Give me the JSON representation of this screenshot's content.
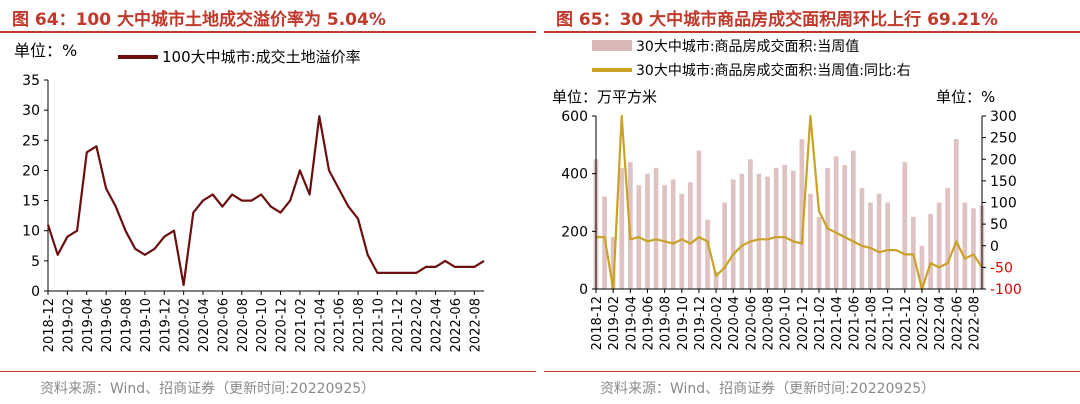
{
  "charts": [
    {
      "panel_title": "图 64：100 大中城市土地成交溢价率为 5.04%",
      "unit_label": "单位：%",
      "source": "资料来源：Wind、招商证券（更新时间:20220925）",
      "colors": {
        "line": "#6b0f0f",
        "title": "#c0392b"
      }
    },
    {
      "panel_title": "图 65：30 大中城市商品房成交面积周环比上行 69.21%",
      "unit_left": "单位：万平方米",
      "unit_right": "单位：%",
      "source": "资料来源：Wind、招商证券（更新时间:20220925）",
      "colors": {
        "bar": "#d9b8b8",
        "line": "#c9a227",
        "neg_tick": "#e00000",
        "title": "#c0392b"
      }
    }
  ],
  "chart_data": [
    {
      "type": "line",
      "title": "100 大中城市土地成交溢价率为 5.04%",
      "ylabel": "%",
      "ylim": [
        0,
        35
      ],
      "yticks": [
        0,
        5,
        10,
        15,
        20,
        25,
        30,
        35
      ],
      "xlim": [
        "2018-12",
        "2022-09"
      ],
      "xticks": [
        "2018-12",
        "2019-02",
        "2019-04",
        "2019-06",
        "2019-08",
        "2019-10",
        "2019-12",
        "2020-02",
        "2020-04",
        "2020-06",
        "2020-08",
        "2020-10",
        "2020-12",
        "2021-02",
        "2021-04",
        "2021-06",
        "2021-08",
        "2021-10",
        "2021-12",
        "2022-02",
        "2022-04",
        "2022-06",
        "2022-08"
      ],
      "grid": false,
      "legend_position": "top",
      "series": [
        {
          "name": "100大中城市:成交土地溢价率",
          "x": [
            "2018-12",
            "2019-01",
            "2019-02",
            "2019-03",
            "2019-04",
            "2019-05",
            "2019-06",
            "2019-07",
            "2019-08",
            "2019-09",
            "2019-10",
            "2019-11",
            "2019-12",
            "2020-01",
            "2020-02",
            "2020-03",
            "2020-04",
            "2020-05",
            "2020-06",
            "2020-07",
            "2020-08",
            "2020-09",
            "2020-10",
            "2020-11",
            "2020-12",
            "2021-01",
            "2021-02",
            "2021-03",
            "2021-04",
            "2021-05",
            "2021-06",
            "2021-07",
            "2021-08",
            "2021-09",
            "2021-10",
            "2021-11",
            "2021-12",
            "2022-01",
            "2022-02",
            "2022-03",
            "2022-04",
            "2022-05",
            "2022-06",
            "2022-07",
            "2022-08",
            "2022-09"
          ],
          "values": [
            11,
            6,
            9,
            10,
            23,
            24,
            17,
            14,
            10,
            7,
            6,
            7,
            9,
            10,
            1,
            13,
            15,
            16,
            14,
            16,
            15,
            15,
            16,
            14,
            13,
            15,
            20,
            16,
            29,
            20,
            17,
            14,
            12,
            6,
            3,
            3,
            3,
            3,
            3,
            4,
            4,
            5,
            4,
            4,
            4,
            5
          ]
        }
      ]
    },
    {
      "type": "bar",
      "title": "30 大中城市商品房成交面积周环比上行 69.21%",
      "ylabel": "万平方米",
      "ylim": [
        0,
        600
      ],
      "yticks": [
        0,
        200,
        400,
        600
      ],
      "y2label": "%",
      "y2lim": [
        -100,
        300
      ],
      "y2ticks": [
        -100,
        -50,
        0,
        50,
        100,
        150,
        200,
        250,
        300
      ],
      "xlim": [
        "2018-12",
        "2022-09"
      ],
      "xticks": [
        "2018-12",
        "2019-02",
        "2019-04",
        "2019-06",
        "2019-08",
        "2019-10",
        "2019-12",
        "2020-02",
        "2020-04",
        "2020-06",
        "2020-08",
        "2020-10",
        "2020-12",
        "2021-02",
        "2021-04",
        "2021-06",
        "2021-08",
        "2021-10",
        "2021-12",
        "2022-02",
        "2022-04",
        "2022-06",
        "2022-08"
      ],
      "grid": false,
      "legend_position": "top",
      "series": [
        {
          "name": "30大中城市:商品房成交面积:当周值",
          "kind": "bar",
          "axis": "left",
          "x": [
            "2018-12",
            "2019-01",
            "2019-02",
            "2019-03",
            "2019-04",
            "2019-05",
            "2019-06",
            "2019-07",
            "2019-08",
            "2019-09",
            "2019-10",
            "2019-11",
            "2019-12",
            "2020-01",
            "2020-02",
            "2020-03",
            "2020-04",
            "2020-05",
            "2020-06",
            "2020-07",
            "2020-08",
            "2020-09",
            "2020-10",
            "2020-11",
            "2020-12",
            "2021-01",
            "2021-02",
            "2021-03",
            "2021-04",
            "2021-05",
            "2021-06",
            "2021-07",
            "2021-08",
            "2021-09",
            "2021-10",
            "2021-12",
            "2022-01",
            "2022-02",
            "2022-03",
            "2022-04",
            "2022-05",
            "2022-06",
            "2022-07",
            "2022-08",
            "2022-09"
          ],
          "values": [
            450,
            320,
            180,
            420,
            440,
            360,
            400,
            420,
            360,
            380,
            330,
            370,
            480,
            240,
            60,
            300,
            380,
            400,
            450,
            400,
            390,
            420,
            430,
            410,
            520,
            330,
            250,
            420,
            460,
            430,
            480,
            350,
            300,
            330,
            300,
            440,
            250,
            150,
            260,
            300,
            350,
            520,
            300,
            280,
            290
          ]
        },
        {
          "name": "30大中城市:商品房成交面积:当周值:同比:右",
          "kind": "line",
          "axis": "right",
          "x": [
            "2018-12",
            "2019-01",
            "2019-02",
            "2019-03",
            "2019-04",
            "2019-05",
            "2019-06",
            "2019-07",
            "2019-08",
            "2019-09",
            "2019-10",
            "2019-11",
            "2019-12",
            "2020-01",
            "2020-02",
            "2020-03",
            "2020-04",
            "2020-05",
            "2020-06",
            "2020-07",
            "2020-08",
            "2020-09",
            "2020-10",
            "2020-11",
            "2020-12",
            "2021-01",
            "2021-02",
            "2021-03",
            "2021-04",
            "2021-05",
            "2021-06",
            "2021-07",
            "2021-08",
            "2021-09",
            "2021-10",
            "2021-11",
            "2021-12",
            "2022-01",
            "2022-02",
            "2022-03",
            "2022-04",
            "2022-05",
            "2022-06",
            "2022-07",
            "2022-08",
            "2022-09"
          ],
          "values": [
            20,
            20,
            -100,
            300,
            15,
            20,
            10,
            15,
            10,
            5,
            15,
            5,
            20,
            10,
            -70,
            -50,
            -20,
            0,
            10,
            15,
            15,
            20,
            20,
            10,
            5,
            300,
            80,
            40,
            30,
            20,
            10,
            0,
            -5,
            -15,
            -10,
            -10,
            -20,
            -20,
            -100,
            -40,
            -50,
            -40,
            10,
            -30,
            -20,
            -50
          ]
        }
      ]
    }
  ]
}
